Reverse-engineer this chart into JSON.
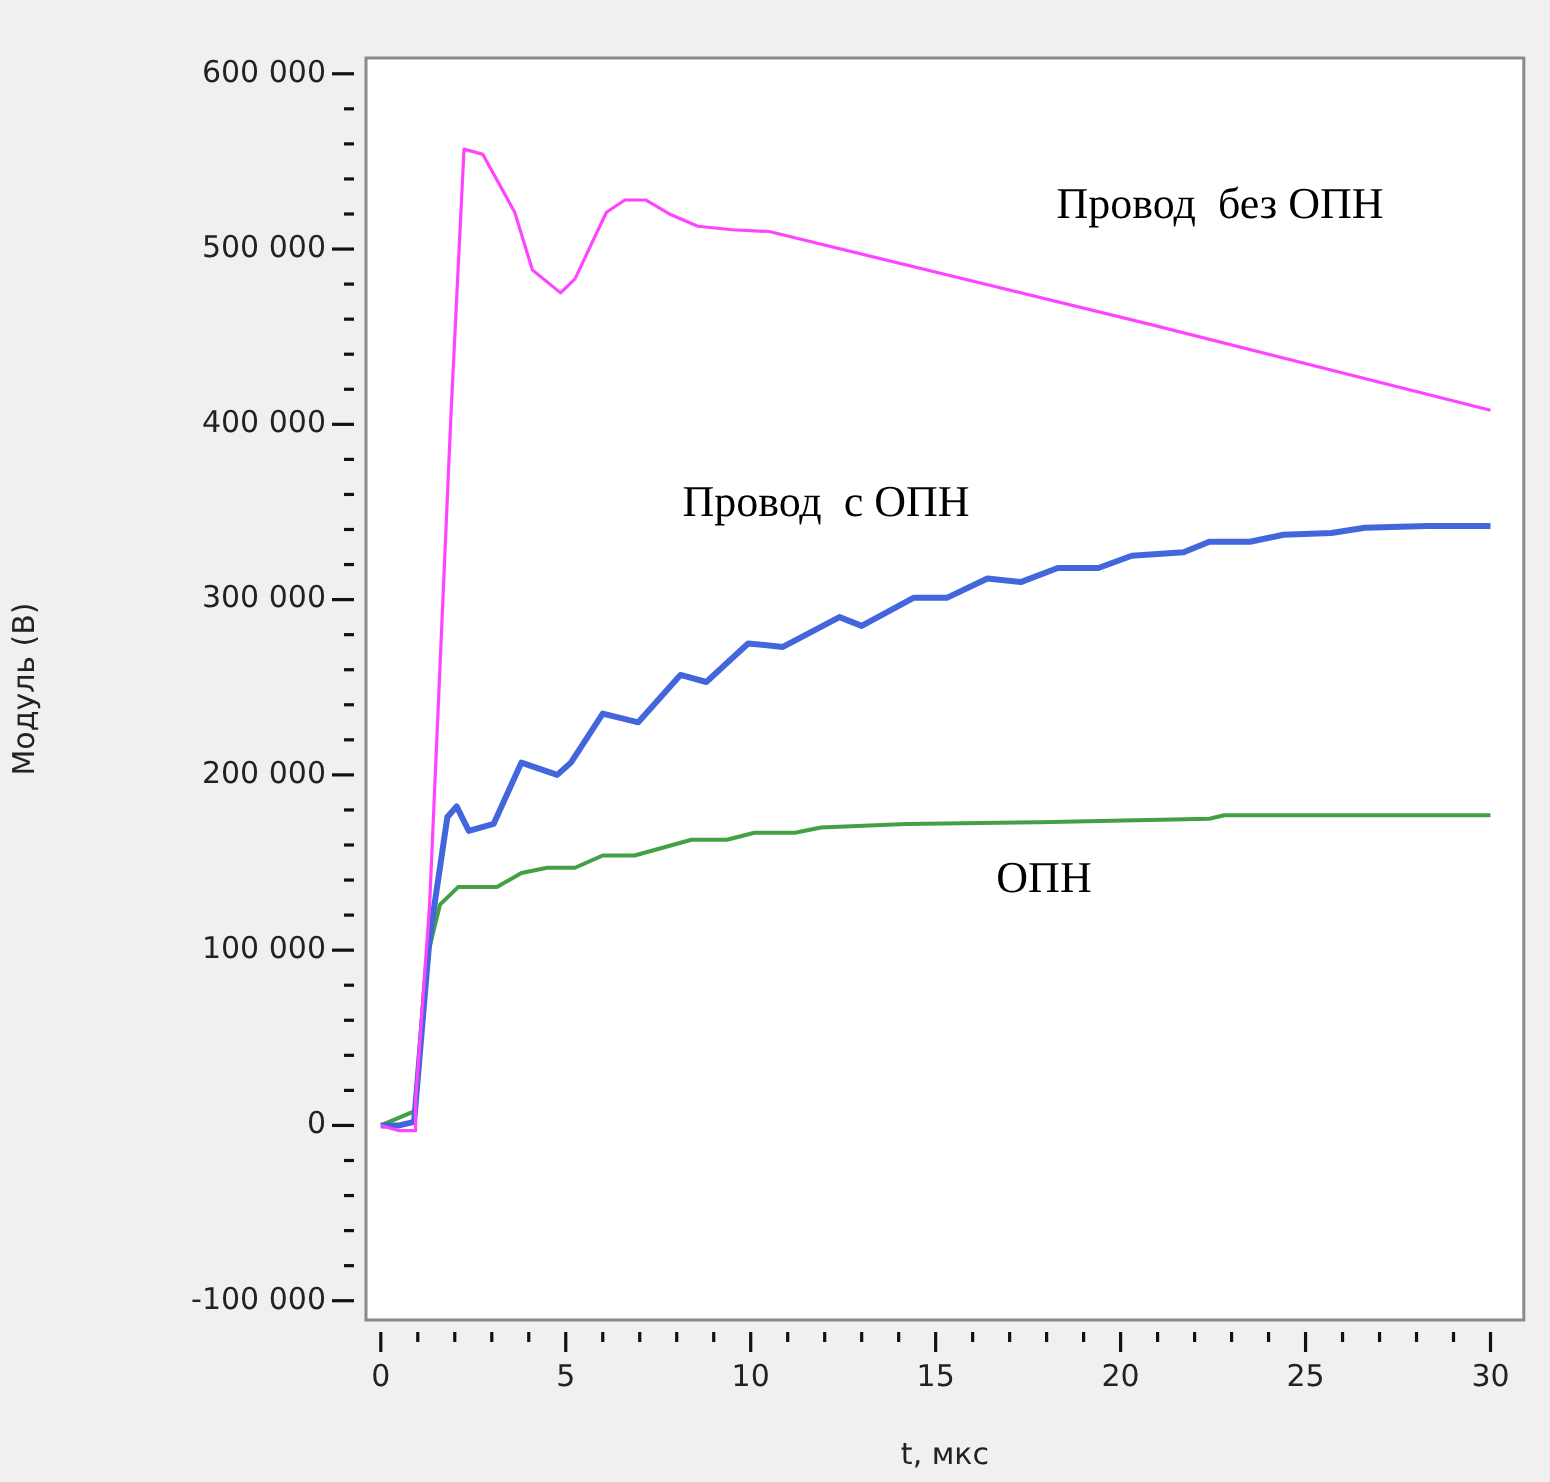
{
  "chart_data": {
    "type": "line",
    "xlabel": "t, мкс",
    "ylabel": "Модуль (В)",
    "xlim": [
      -0.4,
      30.9
    ],
    "ylim": [
      -111000,
      609000
    ],
    "marker": "none",
    "line_style": "solid",
    "legend": false,
    "xticks": [
      0,
      {
        "value": 1,
        "label": null
      },
      {
        "value": 2,
        "label": null
      },
      {
        "value": 3,
        "label": null
      },
      {
        "value": 4,
        "label": null
      },
      5,
      {
        "value": 6,
        "label": null
      },
      {
        "value": 7,
        "label": null
      },
      {
        "value": 8,
        "label": null
      },
      {
        "value": 9,
        "label": null
      },
      10,
      {
        "value": 11,
        "label": null
      },
      {
        "value": 12,
        "label": null
      },
      {
        "value": 13,
        "label": null
      },
      {
        "value": 14,
        "label": null
      },
      15,
      {
        "value": 16,
        "label": null
      },
      {
        "value": 17,
        "label": null
      },
      {
        "value": 18,
        "label": null
      },
      {
        "value": 19,
        "label": null
      },
      20,
      {
        "value": 21,
        "label": null
      },
      {
        "value": 22,
        "label": null
      },
      {
        "value": 23,
        "label": null
      },
      {
        "value": 24,
        "label": null
      },
      25,
      {
        "value": 26,
        "label": null
      },
      {
        "value": 27,
        "label": null
      },
      {
        "value": 28,
        "label": null
      },
      {
        "value": 29,
        "label": null
      },
      30
    ],
    "yticks": [
      {
        "value": -100000,
        "label": "-100 000"
      },
      {
        "value": -80000,
        "label": null
      },
      {
        "value": -60000,
        "label": null
      },
      {
        "value": -40000,
        "label": null
      },
      {
        "value": -20000,
        "label": null
      },
      {
        "value": 0,
        "label": "0"
      },
      {
        "value": 20000,
        "label": null
      },
      {
        "value": 40000,
        "label": null
      },
      {
        "value": 60000,
        "label": null
      },
      {
        "value": 80000,
        "label": null
      },
      {
        "value": 100000,
        "label": "100 000"
      },
      {
        "value": 120000,
        "label": null
      },
      {
        "value": 140000,
        "label": null
      },
      {
        "value": 160000,
        "label": null
      },
      {
        "value": 180000,
        "label": null
      },
      {
        "value": 200000,
        "label": "200 000"
      },
      {
        "value": 220000,
        "label": null
      },
      {
        "value": 240000,
        "label": null
      },
      {
        "value": 260000,
        "label": null
      },
      {
        "value": 280000,
        "label": null
      },
      {
        "value": 300000,
        "label": "300 000"
      },
      {
        "value": 320000,
        "label": null
      },
      {
        "value": 340000,
        "label": null
      },
      {
        "value": 360000,
        "label": null
      },
      {
        "value": 380000,
        "label": null
      },
      {
        "value": 400000,
        "label": "400 000"
      },
      {
        "value": 420000,
        "label": null
      },
      {
        "value": 440000,
        "label": null
      },
      {
        "value": 460000,
        "label": null
      },
      {
        "value": 480000,
        "label": null
      },
      {
        "value": 500000,
        "label": "500 000"
      },
      {
        "value": 520000,
        "label": null
      },
      {
        "value": 540000,
        "label": null
      },
      {
        "value": 560000,
        "label": null
      },
      {
        "value": 580000,
        "label": null
      },
      {
        "value": 600000,
        "label": "600 000"
      }
    ],
    "series": [
      {
        "name": "Провод  без ОПН",
        "color": "#ff44ff",
        "x": [
          0,
          0.5,
          0.9,
          0.94,
          1.32,
          1.9,
          2.25,
          2.76,
          3.62,
          4.1,
          4.86,
          5.25,
          6.1,
          6.6,
          7.16,
          7.8,
          8.57,
          9.5,
          10.5,
          20.8,
          30
        ],
        "values": [
          0,
          -3000,
          -3000,
          14000,
          126000,
          407000,
          557000,
          554000,
          521000,
          488000,
          475000,
          483000,
          521000,
          528000,
          528000,
          520000,
          513000,
          511000,
          510000,
          457000,
          408000
        ]
      },
      {
        "name": "Провод  с ОПН",
        "color": "#4466dd",
        "x": [
          0,
          0.5,
          0.9,
          1.32,
          1.8,
          2.05,
          2.38,
          3.05,
          3.8,
          4.77,
          5.14,
          6.0,
          6.96,
          8.1,
          8.8,
          9.93,
          10.87,
          12.4,
          13,
          14.4,
          15.3,
          16.4,
          17.3,
          18.3,
          19.4,
          20.3,
          21.7,
          22.4,
          23.5,
          24.4,
          25.7,
          26.6,
          28.3,
          30
        ],
        "values": [
          0,
          0,
          2000,
          107000,
          176000,
          182000,
          168000,
          172000,
          207000,
          200000,
          207000,
          235000,
          230000,
          257000,
          253000,
          275000,
          273000,
          290000,
          285000,
          301000,
          301000,
          312000,
          310000,
          318000,
          318000,
          325000,
          327000,
          333000,
          333000,
          337000,
          338000,
          341000,
          342000,
          342000
        ]
      },
      {
        "name": "ОПН",
        "color": "#44a044",
        "x": [
          0,
          0.9,
          0.94,
          1.23,
          1.6,
          2.09,
          3.14,
          3.8,
          4.5,
          5.25,
          6.0,
          6.86,
          8.4,
          9.36,
          10.1,
          11.2,
          11.9,
          14.2,
          17.8,
          22.4,
          22.8,
          30
        ],
        "values": [
          0,
          8000,
          14000,
          94000,
          126000,
          136000,
          136000,
          144000,
          147000,
          147000,
          154000,
          154000,
          163000,
          163000,
          167000,
          167000,
          170000,
          172000,
          173000,
          175000,
          177000,
          177000
        ]
      }
    ]
  }
}
